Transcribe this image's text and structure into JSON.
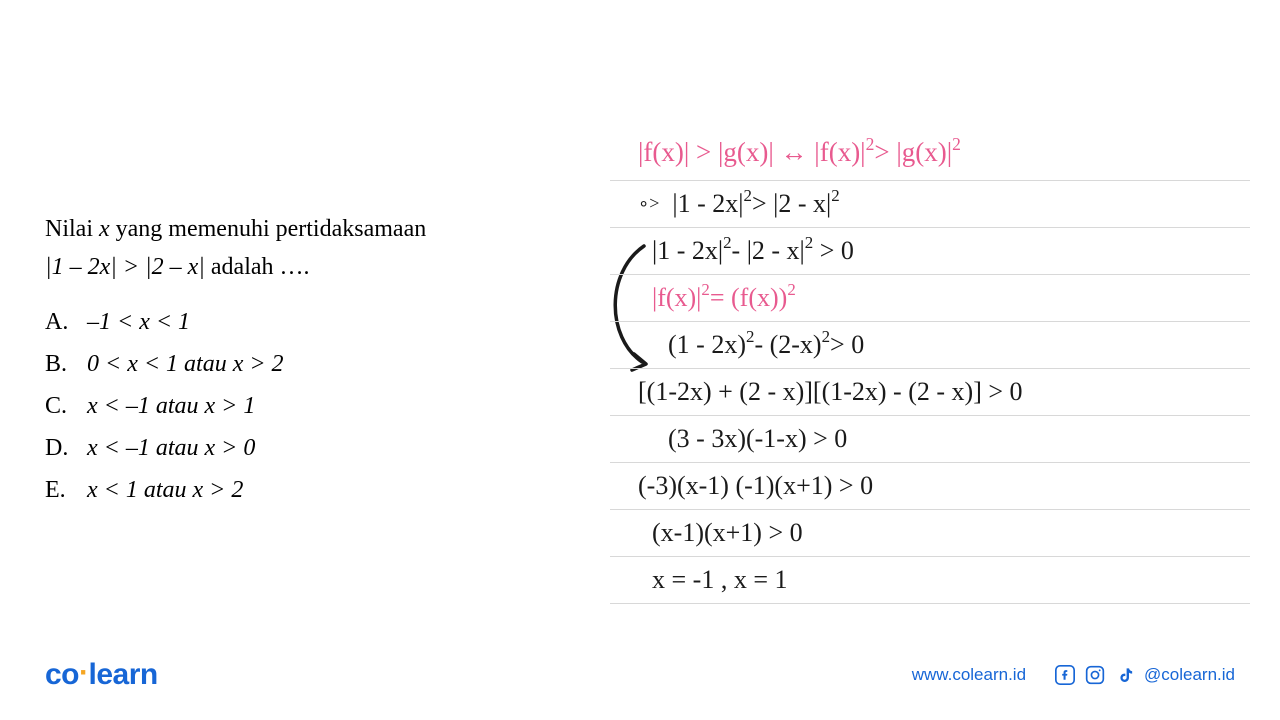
{
  "question": {
    "line1_prefix": "Nilai ",
    "line1_var": "x",
    "line1_mid": " yang memenuhi  pertidaksamaan",
    "line2_math": "|1 – 2x| > |2 – x|",
    "line2_suffix": "  adalah ….",
    "options": [
      {
        "label": "A.",
        "text": "–1 < x < 1"
      },
      {
        "label": "B.",
        "text": "0 < x < 1 atau x > 2"
      },
      {
        "label": "C.",
        "text": "x < –1 atau x > 1"
      },
      {
        "label": "D.",
        "text": "x < –1 atau x > 0"
      },
      {
        "label": "E.",
        "text": "x < 1 atau x > 2"
      }
    ]
  },
  "work": {
    "lines": [
      {
        "html": "|f(x)| > |g(x)| ↔ |f(x)|<sup>2</sup> > |g(x)|<sup>2</sup>",
        "pink": true,
        "cls": "first"
      },
      {
        "html": "<span style='font-size:18px;position:relative;top:-1px;'>∘&gt;</span>&nbsp; |1 - 2x|<sup>2</sup> > |2 - x|<sup>2</sup>",
        "pink": false,
        "cls": ""
      },
      {
        "html": "|1 - 2x|<sup>2</sup> - |2 - x|<sup>2</sup> &nbsp;> 0",
        "pink": false,
        "cls": "indent-1"
      },
      {
        "html": "|f(x)|<sup>2</sup> = (f(x))<sup>2</sup>",
        "pink": true,
        "cls": "indent-1"
      },
      {
        "html": "(1 - 2x)<sup>2</sup> - (2-x)<sup>2</sup> > 0",
        "pink": false,
        "cls": "indent-2"
      },
      {
        "html": "[(1-2x) + (2 - x)][(1-2x) - (2 - x)] > 0",
        "pink": false,
        "cls": ""
      },
      {
        "html": "(3 - 3x)(-1-x) > 0",
        "pink": false,
        "cls": "indent-2"
      },
      {
        "html": "(-3)(x-1) (-1)(x+1) > 0",
        "pink": false,
        "cls": ""
      },
      {
        "html": "(x-1)(x+1) > 0",
        "pink": false,
        "cls": "indent-1"
      },
      {
        "html": "x = -1 , x = 1",
        "pink": false,
        "cls": "indent-1"
      }
    ],
    "colors": {
      "pink": "#e85a8f",
      "ink": "#1a1a1a",
      "rule": "#d8d8d8"
    }
  },
  "footer": {
    "logo_co": "co",
    "logo_learn": "learn",
    "url": "www.colearn.id",
    "handle": "@colearn.id"
  }
}
